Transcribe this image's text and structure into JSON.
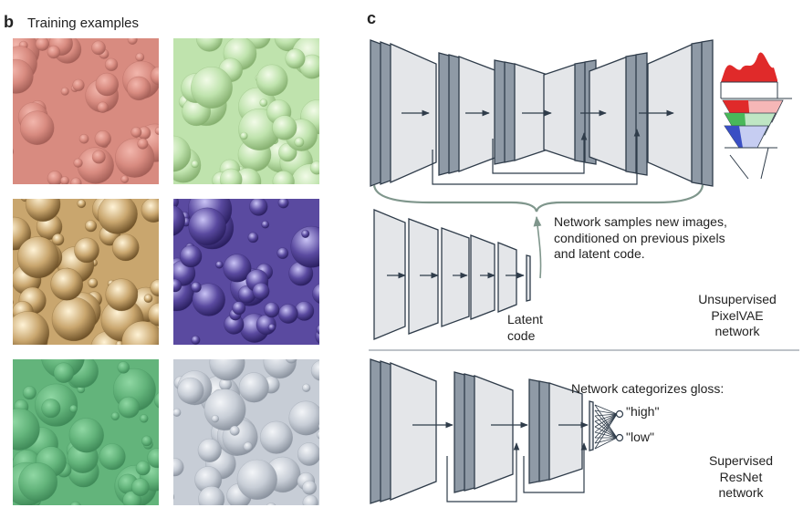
{
  "panel_b": {
    "letter": "b",
    "title": "Training examples",
    "textures": [
      {
        "name": "texture-red-matte",
        "base": "#d88b80",
        "hi": "#f2b6ac",
        "lo": "#a45f57"
      },
      {
        "name": "texture-green-glossy",
        "base": "#bfe3ad",
        "hi": "#f2fbe8",
        "lo": "#86b070"
      },
      {
        "name": "texture-gold-glossy",
        "base": "#c9a66e",
        "hi": "#fff3d6",
        "lo": "#6f5228"
      },
      {
        "name": "texture-purple-glossy",
        "base": "#5a4aa0",
        "hi": "#c9c3f5",
        "lo": "#2a1f60"
      },
      {
        "name": "texture-green-matte",
        "base": "#63b47b",
        "hi": "#8fd7a3",
        "lo": "#3f8a58"
      },
      {
        "name": "texture-silver-glossy",
        "base": "#c7cdd6",
        "hi": "#f3f5f8",
        "lo": "#8a929e"
      }
    ]
  },
  "panel_c": {
    "letter": "c",
    "pixelvae_caption": [
      "Network samples new images,",
      "conditioned on previous pixels",
      "and latent code."
    ],
    "latent_label": [
      "Latent",
      "code"
    ],
    "pixelvae_label": [
      "Unsupervised",
      "PixelVAE",
      "network"
    ],
    "resnet_caption": "Network categorizes gloss:",
    "output_high": "\"high\"",
    "output_low": "\"low\"",
    "resnet_label": [
      "Supervised",
      "ResNet",
      "network"
    ],
    "colors": {
      "line": "#2f3c4a",
      "layer_fill": "#e4e6e9",
      "layer_side": "#8f9aa6",
      "brace": "#7f968c",
      "red": "#e02a2a",
      "green": "#49b85a",
      "blue": "#3a4fc4"
    }
  }
}
